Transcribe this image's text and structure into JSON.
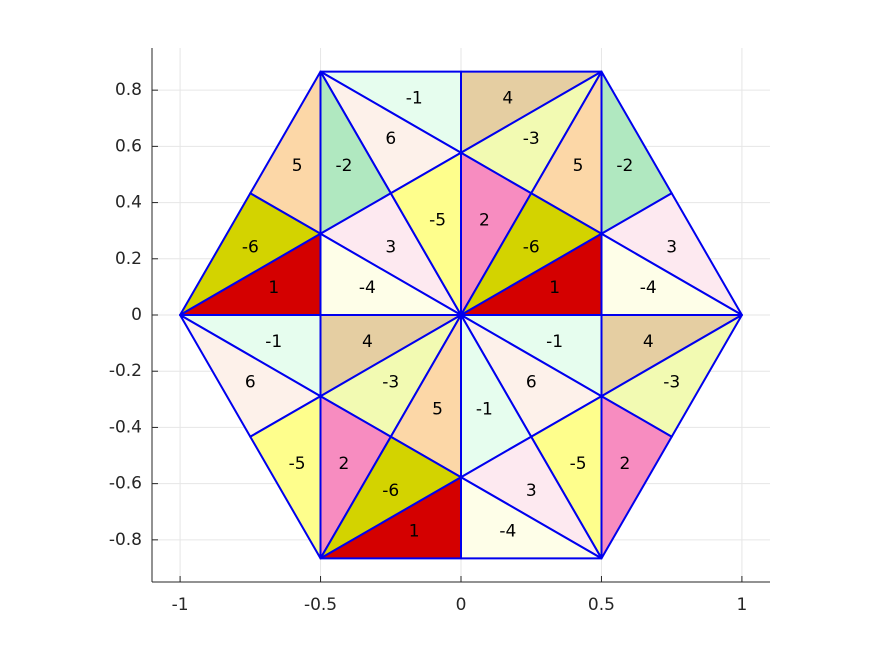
{
  "chart_data": {
    "type": "other",
    "title": "",
    "xlabel": "",
    "ylabel": "",
    "xlim": [
      -1.1,
      1.1
    ],
    "ylim": [
      -0.95,
      0.95
    ],
    "xticks": [
      -1,
      -0.5,
      0,
      0.5,
      1
    ],
    "xtick_labels": [
      "-1",
      "-0.5",
      "0",
      "0.5",
      "1"
    ],
    "yticks": [
      -0.8,
      -0.6,
      -0.4,
      -0.2,
      0,
      0.2,
      0.4,
      0.6,
      0.8
    ],
    "ytick_labels": [
      "-0.8",
      "-0.6",
      "-0.4",
      "-0.2",
      "0",
      "0.2",
      "0.4",
      "0.6",
      "0.8"
    ],
    "grid": true,
    "edge_color": "#0000ee",
    "label_colors": {
      "1": "#d40000",
      "-1": "#e6fdee",
      "2": "#f78cc0",
      "-2": "#b0e8c0",
      "3": "#fde9f0",
      "-3": "#f2fab2",
      "4": "#e5cea2",
      "-4": "#fefee8",
      "5": "#fcd7a7",
      "-5": "#fefe8c",
      "6": "#fdf1ea",
      "-6": "#d3d300"
    },
    "triangles": [
      {
        "label": "-1",
        "vertices": [
          [
            -0.5,
            0.866
          ],
          [
            0,
            0.866
          ],
          [
            0,
            0.577
          ]
        ]
      },
      {
        "label": "6",
        "vertices": [
          [
            -0.5,
            0.866
          ],
          [
            0,
            0.577
          ],
          [
            -0.25,
            0.433
          ]
        ]
      },
      {
        "label": "-2",
        "vertices": [
          [
            -0.5,
            0.866
          ],
          [
            -0.25,
            0.433
          ],
          [
            -0.5,
            0.289
          ]
        ]
      },
      {
        "label": "5",
        "vertices": [
          [
            -0.5,
            0.866
          ],
          [
            -0.5,
            0.289
          ],
          [
            -0.75,
            0.433
          ]
        ]
      },
      {
        "label": "-6",
        "vertices": [
          [
            -0.75,
            0.433
          ],
          [
            -0.5,
            0.289
          ],
          [
            -1,
            0
          ]
        ]
      },
      {
        "label": "1",
        "vertices": [
          [
            -1,
            0
          ],
          [
            -0.5,
            0.289
          ],
          [
            -0.5,
            0
          ]
        ]
      },
      {
        "label": "3",
        "vertices": [
          [
            -0.5,
            0.289
          ],
          [
            -0.25,
            0.433
          ],
          [
            0,
            0
          ]
        ]
      },
      {
        "label": "-4",
        "vertices": [
          [
            -0.5,
            0.289
          ],
          [
            0,
            0
          ],
          [
            -0.5,
            0
          ]
        ]
      },
      {
        "label": "-5",
        "vertices": [
          [
            -0.25,
            0.433
          ],
          [
            0,
            0.577
          ],
          [
            0,
            0
          ]
        ]
      },
      {
        "label": "4",
        "vertices": [
          [
            0,
            0.866
          ],
          [
            0.5,
            0.866
          ],
          [
            0,
            0.577
          ]
        ]
      },
      {
        "label": "-3",
        "vertices": [
          [
            0.5,
            0.866
          ],
          [
            0.25,
            0.433
          ],
          [
            0,
            0.577
          ]
        ]
      },
      {
        "label": "5",
        "vertices": [
          [
            0.5,
            0.866
          ],
          [
            0.5,
            0.289
          ],
          [
            0.25,
            0.433
          ]
        ]
      },
      {
        "label": "-2",
        "vertices": [
          [
            0.5,
            0.866
          ],
          [
            0.75,
            0.433
          ],
          [
            0.5,
            0.289
          ]
        ]
      },
      {
        "label": "2",
        "vertices": [
          [
            0,
            0.577
          ],
          [
            0.25,
            0.433
          ],
          [
            0,
            0
          ]
        ]
      },
      {
        "label": "-6",
        "vertices": [
          [
            0.25,
            0.433
          ],
          [
            0.5,
            0.289
          ],
          [
            0,
            0
          ]
        ]
      },
      {
        "label": "1",
        "vertices": [
          [
            0,
            0
          ],
          [
            0.5,
            0.289
          ],
          [
            0.5,
            0
          ]
        ]
      },
      {
        "label": "3",
        "vertices": [
          [
            0.75,
            0.433
          ],
          [
            1,
            0
          ],
          [
            0.5,
            0.289
          ]
        ]
      },
      {
        "label": "-4",
        "vertices": [
          [
            0.5,
            0.289
          ],
          [
            1,
            0
          ],
          [
            0.5,
            0
          ]
        ]
      },
      {
        "label": "-1",
        "vertices": [
          [
            -1,
            0
          ],
          [
            -0.5,
            0
          ],
          [
            -0.5,
            -0.289
          ]
        ]
      },
      {
        "label": "6",
        "vertices": [
          [
            -1,
            0
          ],
          [
            -0.5,
            -0.289
          ],
          [
            -0.75,
            -0.433
          ]
        ]
      },
      {
        "label": "-5",
        "vertices": [
          [
            -0.75,
            -0.433
          ],
          [
            -0.5,
            -0.289
          ],
          [
            -0.5,
            -0.866
          ]
        ]
      },
      {
        "label": "4",
        "vertices": [
          [
            -0.5,
            0
          ],
          [
            0,
            0
          ],
          [
            -0.5,
            -0.289
          ]
        ]
      },
      {
        "label": "-3",
        "vertices": [
          [
            -0.5,
            -0.289
          ],
          [
            0,
            0
          ],
          [
            -0.25,
            -0.433
          ]
        ]
      },
      {
        "label": "2",
        "vertices": [
          [
            -0.5,
            -0.289
          ],
          [
            -0.25,
            -0.433
          ],
          [
            -0.5,
            -0.866
          ]
        ]
      },
      {
        "label": "5",
        "vertices": [
          [
            0,
            0
          ],
          [
            0,
            -0.577
          ],
          [
            -0.25,
            -0.433
          ]
        ]
      },
      {
        "label": "-6",
        "vertices": [
          [
            -0.25,
            -0.433
          ],
          [
            0,
            -0.577
          ],
          [
            -0.5,
            -0.866
          ]
        ]
      },
      {
        "label": "1",
        "vertices": [
          [
            -0.5,
            -0.866
          ],
          [
            0,
            -0.577
          ],
          [
            0,
            -0.866
          ]
        ]
      },
      {
        "label": "-1",
        "vertices": [
          [
            0,
            0
          ],
          [
            0.5,
            0
          ],
          [
            0.5,
            -0.289
          ]
        ]
      },
      {
        "label": "6",
        "vertices": [
          [
            0,
            0
          ],
          [
            0.5,
            -0.289
          ],
          [
            0.25,
            -0.433
          ]
        ]
      },
      {
        "label": "-1",
        "vertices": [
          [
            0,
            0
          ],
          [
            0.25,
            -0.433
          ],
          [
            0,
            -0.577
          ]
        ]
      },
      {
        "label": "4",
        "vertices": [
          [
            0.5,
            0
          ],
          [
            1,
            0
          ],
          [
            0.5,
            -0.289
          ]
        ]
      },
      {
        "label": "-3",
        "vertices": [
          [
            1,
            0
          ],
          [
            0.75,
            -0.433
          ],
          [
            0.5,
            -0.289
          ]
        ]
      },
      {
        "label": "-5",
        "vertices": [
          [
            0.5,
            -0.289
          ],
          [
            0.5,
            -0.866
          ],
          [
            0.25,
            -0.433
          ]
        ]
      },
      {
        "label": "2",
        "vertices": [
          [
            0.5,
            -0.289
          ],
          [
            0.75,
            -0.433
          ],
          [
            0.5,
            -0.866
          ]
        ]
      },
      {
        "label": "3",
        "vertices": [
          [
            0.25,
            -0.433
          ],
          [
            0.5,
            -0.866
          ],
          [
            0,
            -0.577
          ]
        ]
      },
      {
        "label": "-4",
        "vertices": [
          [
            0,
            -0.577
          ],
          [
            0.5,
            -0.866
          ],
          [
            0,
            -0.866
          ]
        ]
      }
    ]
  }
}
